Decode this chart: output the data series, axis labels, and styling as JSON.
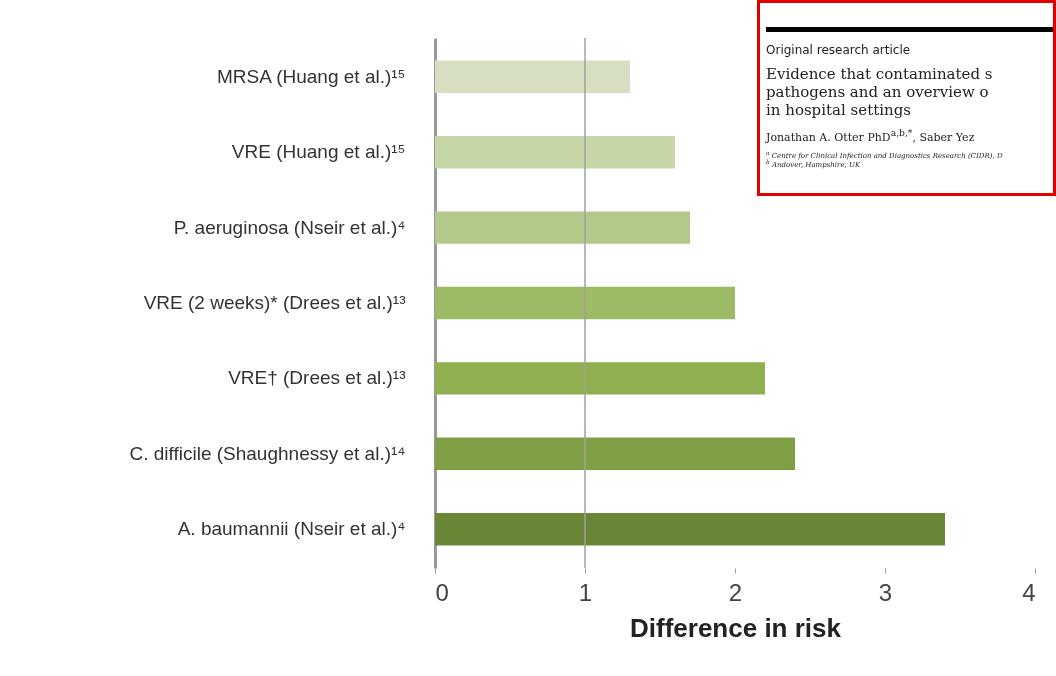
{
  "chart_data": {
    "type": "bar",
    "orientation": "horizontal",
    "xlabel": "Difference in risk",
    "categories": [
      "MRSA (Huang et al.)¹⁵",
      "VRE (Huang et al.)¹⁵",
      "P. aeruginosa (Nseir et al.)⁴",
      "VRE (2 weeks)* (Drees et al.)¹³",
      "VRE† (Drees et al.)¹³",
      "C. difficile (Shaughnessy et al.)¹⁴",
      "A. baumannii (Nseir et al.)⁴"
    ],
    "values": [
      1.3,
      1.6,
      1.7,
      2.0,
      2.2,
      2.4,
      3.4
    ],
    "colors": [
      "#d6e0c0",
      "#c6d6a6",
      "#b2c98b",
      "#9dbb64",
      "#90b050",
      "#7f9f44",
      "#6a8737"
    ],
    "xlim": [
      0,
      4
    ],
    "xticks": [
      0,
      1,
      2,
      3,
      4
    ],
    "grid": false,
    "ref_lines": [
      {
        "axis": "x",
        "value": 1,
        "color": "#a0a0a0"
      }
    ],
    "annotations": [
      "Original research article",
      "Evidence that contaminated s",
      "pathogens and an overview o",
      "in hospital settings",
      "Jonathan A. Otter PhD$^{a,b,*}$, Saber Yez",
      "$^{a}$ Centre for Clinical Infection and Diagnostics Research (CIDR), D",
      "$^{b}$ Andover, Hampshire, UK"
    ]
  }
}
